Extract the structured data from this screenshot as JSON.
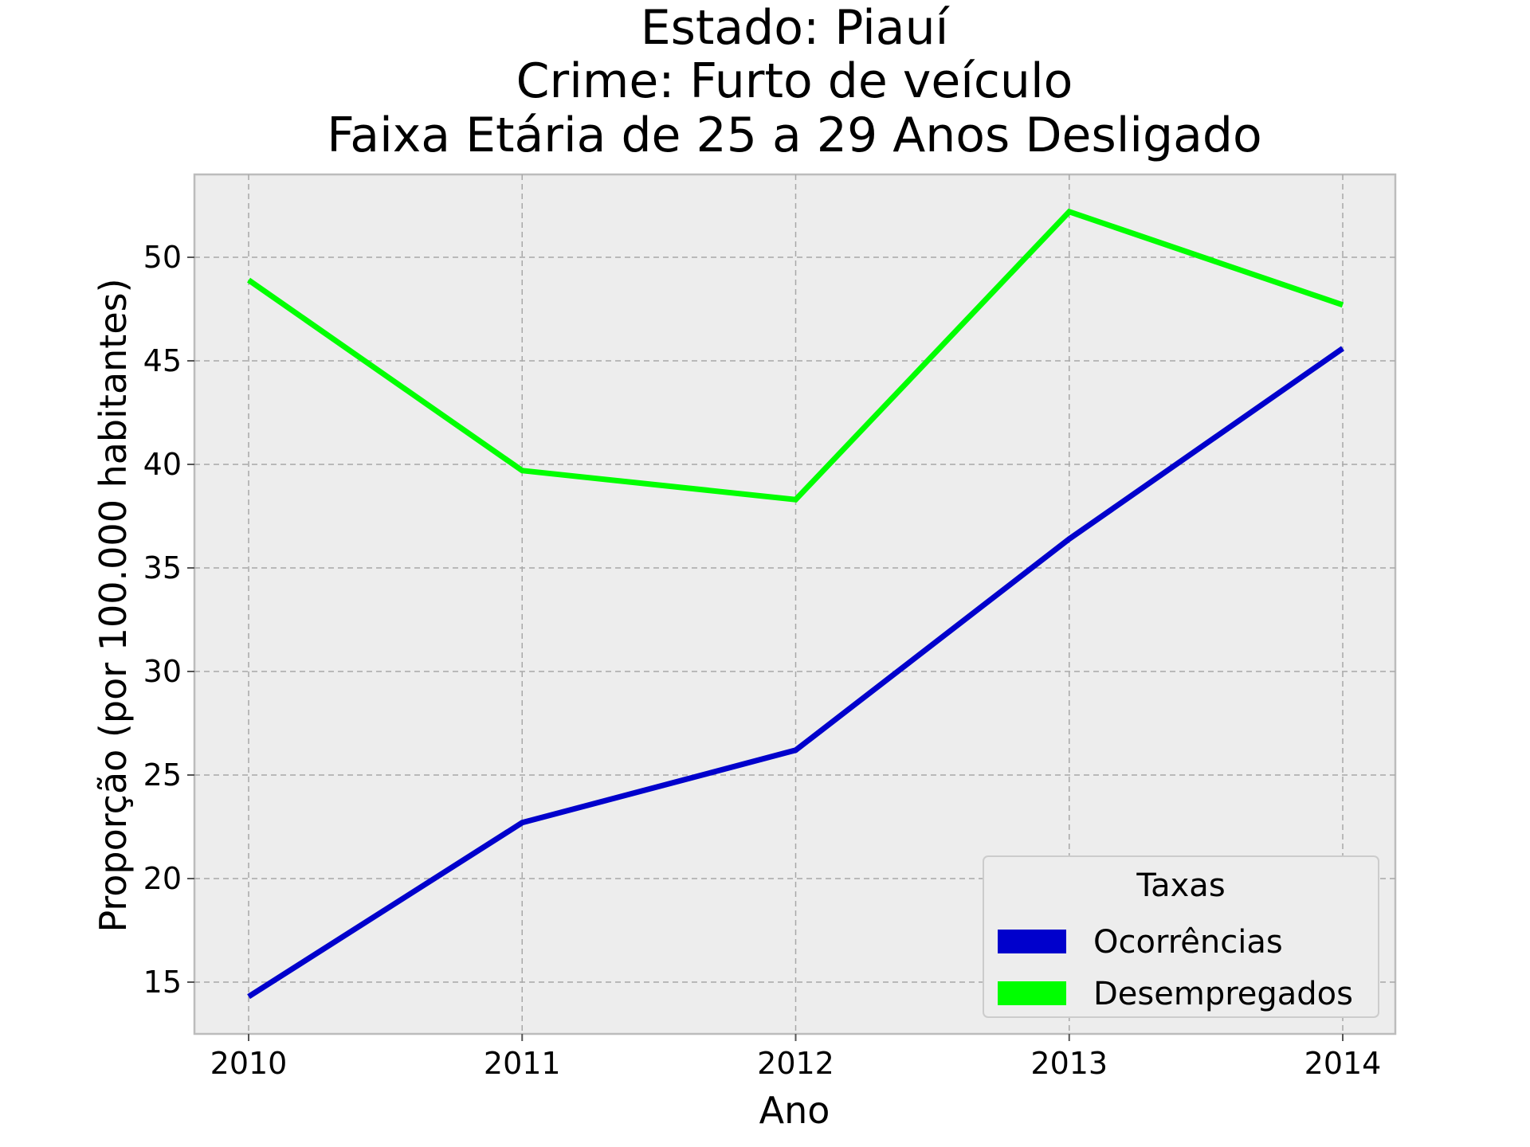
{
  "chart_data": {
    "type": "line",
    "title": [
      "Estado: Piauí",
      "Crime: Furto de veículo",
      "Faixa Etária de 25 a 29 Anos   Desligado"
    ],
    "xlabel": "Ano",
    "ylabel": "Proporção (por 100.000 habitantes)",
    "x": [
      "2010",
      "2011",
      "2012",
      "2013",
      "2014"
    ],
    "ylim": [
      12.5,
      54
    ],
    "yticks": [
      15,
      20,
      25,
      30,
      35,
      40,
      45,
      50
    ],
    "grid": true,
    "legend": {
      "title": "Taxas",
      "placement": "bottom-right"
    },
    "series": [
      {
        "name": "Ocorrências",
        "color": "#0000cc",
        "values": [
          14.3,
          22.7,
          26.2,
          36.4,
          45.6
        ]
      },
      {
        "name": "Desempregados",
        "color": "#00ff00",
        "values": [
          48.9,
          39.7,
          38.3,
          52.2,
          47.7
        ]
      }
    ],
    "background": "#ededed"
  }
}
